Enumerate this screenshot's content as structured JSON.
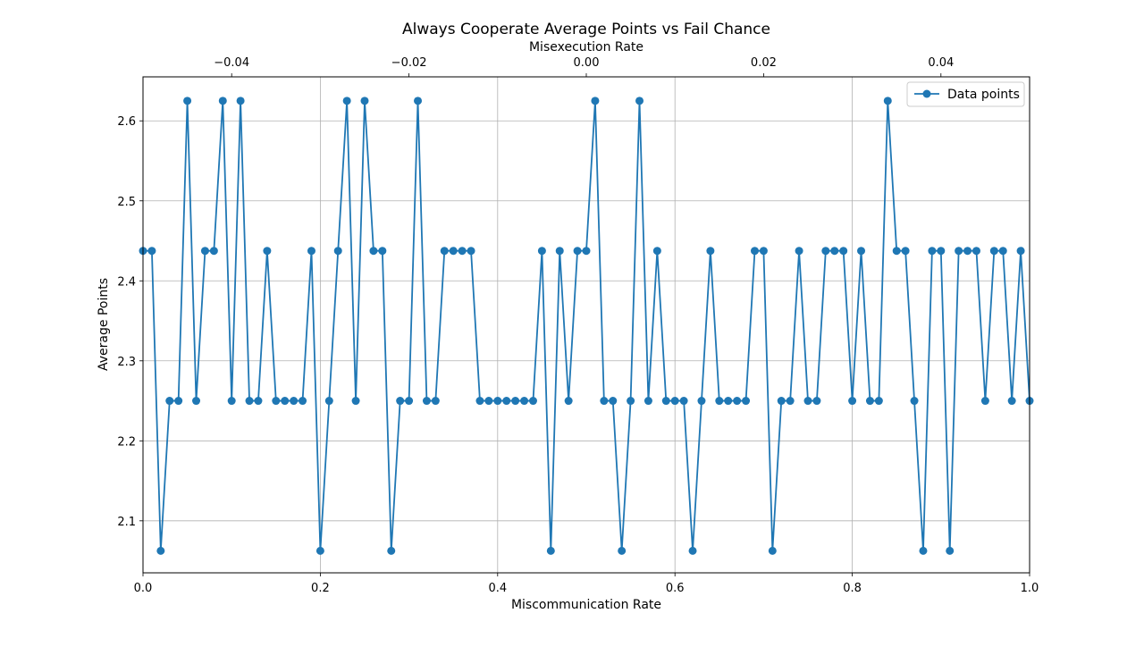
{
  "chart_data": {
    "type": "line",
    "title": "Always Cooperate Average Points vs Fail Chance",
    "xlabel": "Miscommunication Rate",
    "ylabel": "Average Points",
    "top_xlabel": "Misexecution Rate",
    "xlim": [
      0,
      1
    ],
    "ylim": [
      2.035,
      2.655
    ],
    "top_xlim": [
      -0.05,
      0.05
    ],
    "x_ticks": [
      0.0,
      0.2,
      0.4,
      0.6,
      0.8,
      1.0
    ],
    "x_tick_labels": [
      "0.0",
      "0.2",
      "0.4",
      "0.6",
      "0.8",
      "1.0"
    ],
    "y_ticks": [
      2.1,
      2.2,
      2.3,
      2.4,
      2.5,
      2.6
    ],
    "y_tick_labels": [
      "2.1",
      "2.2",
      "2.3",
      "2.4",
      "2.5",
      "2.6"
    ],
    "top_x_ticks": [
      -0.04,
      -0.02,
      0.0,
      0.02,
      0.04
    ],
    "top_x_tick_labels": [
      "−0.04",
      "−0.02",
      "0.00",
      "0.02",
      "0.04"
    ],
    "grid": true,
    "legend_position": "top-right",
    "color": "#1f77b4",
    "series": [
      {
        "name": "Data points",
        "x": [
          0.0,
          0.01,
          0.02,
          0.03,
          0.04,
          0.05,
          0.06,
          0.07,
          0.08,
          0.09,
          0.1,
          0.11,
          0.12,
          0.13,
          0.14,
          0.15,
          0.16,
          0.17,
          0.18,
          0.19,
          0.2,
          0.21,
          0.22,
          0.23,
          0.24,
          0.25,
          0.26,
          0.27,
          0.28,
          0.29,
          0.3,
          0.31,
          0.32,
          0.33,
          0.34,
          0.35,
          0.36,
          0.37,
          0.38,
          0.39,
          0.4,
          0.41,
          0.42,
          0.43,
          0.44,
          0.45,
          0.46,
          0.47,
          0.48,
          0.49,
          0.5,
          0.51,
          0.52,
          0.53,
          0.54,
          0.55,
          0.56,
          0.57,
          0.58,
          0.59,
          0.6,
          0.61,
          0.62,
          0.63,
          0.64,
          0.65,
          0.66,
          0.67,
          0.68,
          0.69,
          0.7,
          0.71,
          0.72,
          0.73,
          0.74,
          0.75,
          0.76,
          0.77,
          0.78,
          0.79,
          0.8,
          0.81,
          0.82,
          0.83,
          0.84,
          0.85,
          0.86,
          0.87,
          0.88,
          0.89,
          0.9,
          0.91,
          0.92,
          0.93,
          0.94,
          0.95,
          0.96,
          0.97,
          0.98,
          0.99,
          1.0
        ],
        "y": [
          2.4375,
          2.4375,
          2.0625,
          2.25,
          2.25,
          2.625,
          2.25,
          2.4375,
          2.4375,
          2.625,
          2.25,
          2.625,
          2.25,
          2.25,
          2.4375,
          2.25,
          2.25,
          2.25,
          2.25,
          2.4375,
          2.0625,
          2.25,
          2.4375,
          2.625,
          2.25,
          2.625,
          2.4375,
          2.4375,
          2.0625,
          2.25,
          2.25,
          2.625,
          2.25,
          2.25,
          2.4375,
          2.4375,
          2.4375,
          2.4375,
          2.25,
          2.25,
          2.25,
          2.25,
          2.25,
          2.25,
          2.25,
          2.4375,
          2.0625,
          2.4375,
          2.25,
          2.4375,
          2.4375,
          2.625,
          2.25,
          2.25,
          2.0625,
          2.25,
          2.625,
          2.25,
          2.4375,
          2.25,
          2.25,
          2.25,
          2.0625,
          2.25,
          2.4375,
          2.25,
          2.25,
          2.25,
          2.25,
          2.4375,
          2.4375,
          2.0625,
          2.25,
          2.25,
          2.4375,
          2.25,
          2.25,
          2.4375,
          2.4375,
          2.4375,
          2.25,
          2.4375,
          2.25,
          2.25,
          2.625,
          2.4375,
          2.4375,
          2.25,
          2.0625,
          2.4375,
          2.4375,
          2.0625,
          2.4375,
          2.4375,
          2.4375,
          2.25,
          2.4375,
          2.4375,
          2.25,
          2.4375,
          2.25
        ]
      }
    ]
  }
}
